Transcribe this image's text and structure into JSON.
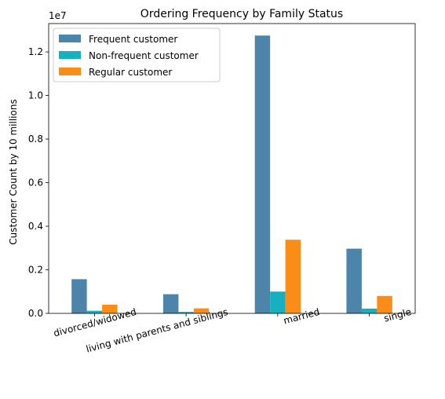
{
  "chart_data": {
    "type": "bar",
    "title": "Ordering Frequency by Family Status",
    "xlabel": "",
    "ylabel": "Customer Count by 10 millions",
    "scale_note": "1e7",
    "categories": [
      "divorced/widowed",
      "living with parents and siblings",
      "married",
      "single"
    ],
    "ylim": [
      0,
      1.33
    ],
    "yticks": [
      "0.0",
      "0.2",
      "0.4",
      "0.6",
      "0.8",
      "1.0",
      "1.2"
    ],
    "legend_position": "top-left",
    "grid": false,
    "series": [
      {
        "name": "Frequent customer",
        "color": "#4c84aa",
        "values": [
          0.157,
          0.088,
          1.275,
          0.297
        ]
      },
      {
        "name": "Non-frequent customer",
        "color": "#17b0c1",
        "values": [
          0.012,
          0.007,
          0.1,
          0.022
        ]
      },
      {
        "name": "Regular customer",
        "color": "#f98d17",
        "values": [
          0.04,
          0.023,
          0.338,
          0.08
        ]
      }
    ]
  }
}
